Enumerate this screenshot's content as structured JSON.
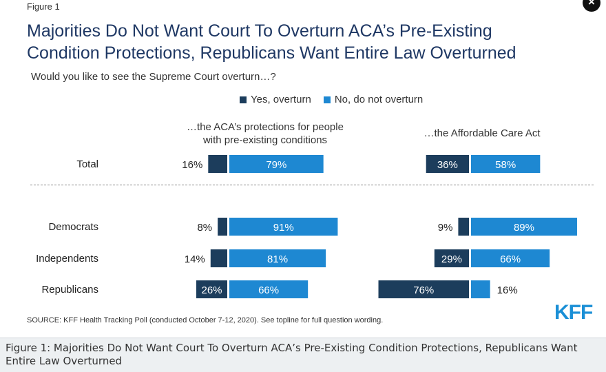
{
  "figure_label": "Figure 1",
  "close_icon_glyph": "×",
  "title_line1": "Majorities Do Not Want Court To Overturn ACA’s Pre-Existing",
  "title_line2": "Condition Protections, Republicans Want Entire Law Overturned",
  "subtitle": "Would you like to see the Supreme Court overturn…?",
  "legend": {
    "yes": "Yes, overturn",
    "no": "No, do not overturn"
  },
  "colors": {
    "yes": "#1c3d5c",
    "no": "#1e88d2",
    "title": "#1f3864",
    "kff": "#1a8fd6"
  },
  "panel_left_title_line1": "…the ACA’s protections for people",
  "panel_left_title_line2": "with pre-existing conditions",
  "panel_right_title": "…the Affordable Care Act",
  "source": "SOURCE: KFF Health Tracking Poll (conducted October 7-12, 2020). See topline for full question wording.",
  "logo": "KFF",
  "caption": "Figure 1: Majorities Do Not Want Court To Overturn ACA’s Pre-Existing Condition Protections, Republicans Want Entire Law Overturned",
  "chart_data": [
    {
      "type": "bar",
      "orientation": "horizontal-diverging",
      "title": "…the ACA’s protections for people with pre-existing conditions",
      "categories": [
        "Total",
        "Democrats",
        "Independents",
        "Republicans"
      ],
      "series": [
        {
          "name": "Yes, overturn",
          "values": [
            16,
            8,
            14,
            26
          ],
          "labels": [
            "16%",
            "8%",
            "14%",
            "26%"
          ]
        },
        {
          "name": "No, do not overturn",
          "values": [
            79,
            91,
            81,
            66
          ],
          "labels": [
            "79%",
            "91%",
            "81%",
            "66%"
          ]
        }
      ]
    },
    {
      "type": "bar",
      "orientation": "horizontal-diverging",
      "title": "…the Affordable Care Act",
      "categories": [
        "Total",
        "Democrats",
        "Independents",
        "Republicans"
      ],
      "series": [
        {
          "name": "Yes, overturn",
          "values": [
            36,
            9,
            29,
            76
          ],
          "labels": [
            "36%",
            "9%",
            "29%",
            "76%"
          ]
        },
        {
          "name": "No, do not overturn",
          "values": [
            58,
            89,
            66,
            16
          ],
          "labels": [
            "58%",
            "89%",
            "66%",
            "16%"
          ]
        }
      ]
    }
  ]
}
